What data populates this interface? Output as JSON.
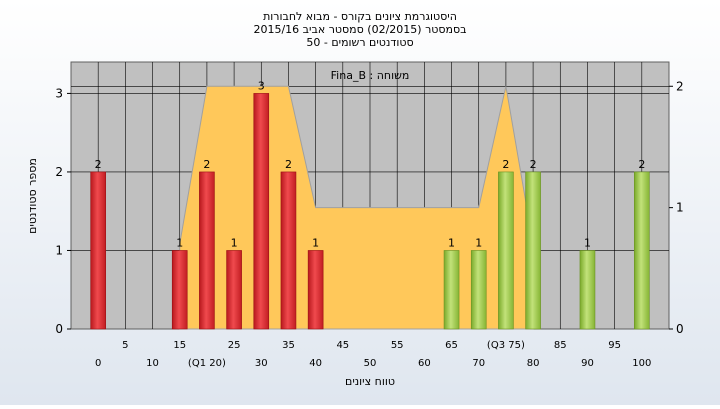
{
  "chart_data": {
    "type": "bar",
    "title_lines": [
      "היסטוגרמת ציונים בקורס - מבוא לחבורות",
      "בסמסטר  (02/2015)  סמסטר אביב 2015/16",
      "סטודנטים רשומים - 50"
    ],
    "legend_label": "משוחה : Fina_B",
    "xlabel": "טווח ציונים",
    "ylabel": "מספר סטודנטים",
    "ylim": [
      0,
      3.4
    ],
    "y2lim": [
      0,
      2.2
    ],
    "yticks": [
      0,
      1,
      2,
      3
    ],
    "y2ticks": [
      0,
      1,
      2
    ],
    "xlim": [
      -5,
      105
    ],
    "x_tick_labels": [
      {
        "x": 0,
        "label": "0",
        "row": 2
      },
      {
        "x": 5,
        "label": "5",
        "row": 1
      },
      {
        "x": 10,
        "label": "10",
        "row": 2
      },
      {
        "x": 15,
        "label": "15",
        "row": 1
      },
      {
        "x": 20,
        "label": "(Q1 20)",
        "row": 2
      },
      {
        "x": 25,
        "label": "25",
        "row": 1
      },
      {
        "x": 30,
        "label": "30",
        "row": 2
      },
      {
        "x": 35,
        "label": "35",
        "row": 1
      },
      {
        "x": 40,
        "label": "40",
        "row": 2
      },
      {
        "x": 45,
        "label": "45",
        "row": 1
      },
      {
        "x": 50,
        "label": "50",
        "row": 2
      },
      {
        "x": 55,
        "label": "55",
        "row": 1
      },
      {
        "x": 60,
        "label": "60",
        "row": 2
      },
      {
        "x": 65,
        "label": "65",
        "row": 1
      },
      {
        "x": 70,
        "label": "70",
        "row": 2
      },
      {
        "x": 75,
        "label": "(Q3 75)",
        "row": 1
      },
      {
        "x": 80,
        "label": "80",
        "row": 2
      },
      {
        "x": 85,
        "label": "85",
        "row": 1
      },
      {
        "x": 90,
        "label": "90",
        "row": 2
      },
      {
        "x": 95,
        "label": "95",
        "row": 1
      },
      {
        "x": 100,
        "label": "100",
        "row": 2
      }
    ],
    "bars": [
      {
        "x": 0,
        "value": 2,
        "color": "red"
      },
      {
        "x": 15,
        "value": 1,
        "color": "red"
      },
      {
        "x": 20,
        "value": 2,
        "color": "red"
      },
      {
        "x": 25,
        "value": 1,
        "color": "red"
      },
      {
        "x": 30,
        "value": 3,
        "color": "red"
      },
      {
        "x": 35,
        "value": 2,
        "color": "red"
      },
      {
        "x": 40,
        "value": 1,
        "color": "red"
      },
      {
        "x": 65,
        "value": 1,
        "color": "green"
      },
      {
        "x": 70,
        "value": 1,
        "color": "green"
      },
      {
        "x": 75,
        "value": 2,
        "color": "green"
      },
      {
        "x": 80,
        "value": 2,
        "color": "green"
      },
      {
        "x": 90,
        "value": 1,
        "color": "green"
      },
      {
        "x": 100,
        "value": 2,
        "color": "green"
      }
    ],
    "area_series": {
      "axis": "secondary",
      "points": [
        [
          15,
          0
        ],
        [
          15,
          0.7
        ],
        [
          20,
          2
        ],
        [
          35,
          2
        ],
        [
          40,
          1
        ],
        [
          65,
          1
        ],
        [
          70,
          1
        ],
        [
          75,
          2
        ],
        [
          80,
          0.7
        ],
        [
          80,
          0
        ]
      ]
    },
    "colors": {
      "plot_bg": "#c0c0c0",
      "area": "#ffc85a",
      "bar_red": "#e8282e",
      "bar_green": "#9acd46",
      "grid": "#000000"
    }
  }
}
